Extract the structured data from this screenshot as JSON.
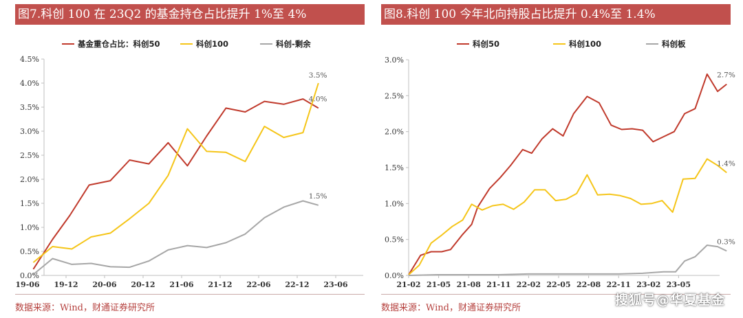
{
  "watermark": "搜狐号@华夏基金",
  "charts": [
    {
      "banner_title": "图7.科创 100 在 23Q2 的基金持仓占比提升 1%至 4%",
      "source": "数据来源：Wind，财通证券研究所"
    },
    {
      "banner_title": "图8.科创 100 今年北向持股占比提升 0.4%至 1.4%",
      "source": "数据来源：Wind，财通证券研究所"
    }
  ],
  "colors": {
    "banner": "#c1504d",
    "red": "#c0392b",
    "yellow": "#f5c518",
    "gray": "#a6a6a6"
  },
  "chart_data": [
    {
      "type": "line",
      "title": "",
      "xlabel": "",
      "ylabel": "",
      "x_ticks": [
        "19-06",
        "19-12",
        "20-06",
        "20-12",
        "21-06",
        "21-12",
        "22-06",
        "22-12",
        "23-06"
      ],
      "ylim": [
        0,
        0.045
      ],
      "y_ticks": [
        "0.0%",
        "0.5%",
        "1.0%",
        "1.5%",
        "2.0%",
        "2.5%",
        "3.0%",
        "3.5%",
        "4.0%",
        "4.5%"
      ],
      "grid": false,
      "legend_position": "top",
      "series": [
        {
          "name": "基金重仓占比：科创50",
          "color": "red",
          "points": [
            [
              0.15,
              0.0013
            ],
            [
              0.65,
              0.0075
            ],
            [
              1.1,
              0.0125
            ],
            [
              1.6,
              0.0188
            ],
            [
              2.15,
              0.0197
            ],
            [
              2.65,
              0.024
            ],
            [
              3.15,
              0.0232
            ],
            [
              3.65,
              0.0276
            ],
            [
              4.15,
              0.0228
            ],
            [
              4.65,
              0.029
            ],
            [
              5.15,
              0.0348
            ],
            [
              5.65,
              0.034
            ],
            [
              6.15,
              0.0362
            ],
            [
              6.65,
              0.0356
            ],
            [
              7.15,
              0.0367
            ],
            [
              7.55,
              0.0348
            ]
          ]
        },
        {
          "name": "科创100",
          "color": "yellow",
          "points": [
            [
              0.15,
              0.0027
            ],
            [
              0.65,
              0.006
            ],
            [
              1.15,
              0.0055
            ],
            [
              1.65,
              0.008
            ],
            [
              2.15,
              0.0088
            ],
            [
              2.65,
              0.0118
            ],
            [
              3.15,
              0.015
            ],
            [
              3.65,
              0.0208
            ],
            [
              4.15,
              0.0305
            ],
            [
              4.65,
              0.0258
            ],
            [
              5.15,
              0.0256
            ],
            [
              5.65,
              0.0237
            ],
            [
              6.15,
              0.031
            ],
            [
              6.65,
              0.0287
            ],
            [
              7.15,
              0.0297
            ],
            [
              7.55,
              0.04
            ]
          ]
        },
        {
          "name": "科创-剩余",
          "color": "gray",
          "points": [
            [
              0.15,
              0.0002
            ],
            [
              0.65,
              0.0035
            ],
            [
              1.15,
              0.0023
            ],
            [
              1.65,
              0.0025
            ],
            [
              2.15,
              0.0018
            ],
            [
              2.65,
              0.0017
            ],
            [
              3.15,
              0.003
            ],
            [
              3.65,
              0.0053
            ],
            [
              4.15,
              0.0062
            ],
            [
              4.65,
              0.0058
            ],
            [
              5.15,
              0.0068
            ],
            [
              5.65,
              0.0086
            ],
            [
              6.15,
              0.012
            ],
            [
              6.65,
              0.0142
            ],
            [
              7.15,
              0.0155
            ],
            [
              7.55,
              0.0146
            ]
          ]
        }
      ],
      "annotations": [
        "4.0%",
        "3.5%",
        "1.5%"
      ]
    },
    {
      "type": "line",
      "title": "",
      "xlabel": "",
      "ylabel": "",
      "x_ticks": [
        "21-02",
        "21-05",
        "21-08",
        "21-11",
        "22-02",
        "22-05",
        "22-08",
        "22-11",
        "23-02",
        "23-05"
      ],
      "ylim": [
        0,
        0.03
      ],
      "y_ticks": [
        "0.0%",
        "0.5%",
        "1.0%",
        "1.5%",
        "2.0%",
        "2.5%",
        "3.0%"
      ],
      "grid": false,
      "legend_position": "top",
      "series": [
        {
          "name": "科创50",
          "color": "red",
          "points": [
            [
              0,
              0.0001
            ],
            [
              0.4,
              0.0028
            ],
            [
              0.75,
              0.0033
            ],
            [
              1.1,
              0.0033
            ],
            [
              1.4,
              0.0036
            ],
            [
              1.8,
              0.0057
            ],
            [
              2.1,
              0.0071
            ],
            [
              2.3,
              0.0095
            ],
            [
              2.7,
              0.0121
            ],
            [
              3.05,
              0.0136
            ],
            [
              3.4,
              0.0153
            ],
            [
              3.8,
              0.0175
            ],
            [
              4.1,
              0.017
            ],
            [
              4.45,
              0.019
            ],
            [
              4.8,
              0.0204
            ],
            [
              5.15,
              0.0194
            ],
            [
              5.5,
              0.0225
            ],
            [
              5.95,
              0.0249
            ],
            [
              6.35,
              0.024
            ],
            [
              6.75,
              0.0209
            ],
            [
              7.1,
              0.0203
            ],
            [
              7.45,
              0.0204
            ],
            [
              7.8,
              0.0202
            ],
            [
              8.15,
              0.0186
            ],
            [
              8.5,
              0.0193
            ],
            [
              8.85,
              0.02
            ],
            [
              9.2,
              0.0225
            ],
            [
              9.55,
              0.0232
            ],
            [
              9.95,
              0.028
            ],
            [
              10.3,
              0.0256
            ],
            [
              10.6,
              0.0266
            ]
          ]
        },
        {
          "name": "科创100",
          "color": "yellow",
          "points": [
            [
              0,
              0.0001
            ],
            [
              0.35,
              0.0014
            ],
            [
              0.75,
              0.0045
            ],
            [
              1.1,
              0.0056
            ],
            [
              1.45,
              0.0068
            ],
            [
              1.8,
              0.0077
            ],
            [
              2.1,
              0.0099
            ],
            [
              2.45,
              0.0091
            ],
            [
              2.8,
              0.0097
            ],
            [
              3.15,
              0.0099
            ],
            [
              3.5,
              0.0092
            ],
            [
              3.85,
              0.0102
            ],
            [
              4.2,
              0.0119
            ],
            [
              4.55,
              0.0119
            ],
            [
              4.9,
              0.0104
            ],
            [
              5.25,
              0.0106
            ],
            [
              5.6,
              0.0114
            ],
            [
              5.95,
              0.014
            ],
            [
              6.3,
              0.0112
            ],
            [
              6.7,
              0.0113
            ],
            [
              7.05,
              0.0111
            ],
            [
              7.4,
              0.0107
            ],
            [
              7.75,
              0.0099
            ],
            [
              8.1,
              0.01
            ],
            [
              8.45,
              0.0104
            ],
            [
              8.8,
              0.0088
            ],
            [
              9.15,
              0.0134
            ],
            [
              9.55,
              0.0135
            ],
            [
              9.95,
              0.0162
            ],
            [
              10.3,
              0.0153
            ],
            [
              10.6,
              0.0143
            ]
          ]
        },
        {
          "name": "科创板",
          "color": "gray",
          "points": [
            [
              0,
              0.0
            ],
            [
              1,
              0.0001
            ],
            [
              2,
              0.0001
            ],
            [
              3,
              0.0001
            ],
            [
              4,
              0.0002
            ],
            [
              5,
              0.0002
            ],
            [
              6,
              0.0002
            ],
            [
              7,
              0.0002
            ],
            [
              7.8,
              0.0003
            ],
            [
              8.5,
              0.0005
            ],
            [
              8.9,
              0.0005
            ],
            [
              9.2,
              0.002
            ],
            [
              9.55,
              0.0026
            ],
            [
              9.95,
              0.0042
            ],
            [
              10.3,
              0.004
            ],
            [
              10.6,
              0.0034
            ]
          ]
        }
      ],
      "annotations": [
        "2.7%",
        "1.4%",
        "0.3%"
      ]
    }
  ]
}
